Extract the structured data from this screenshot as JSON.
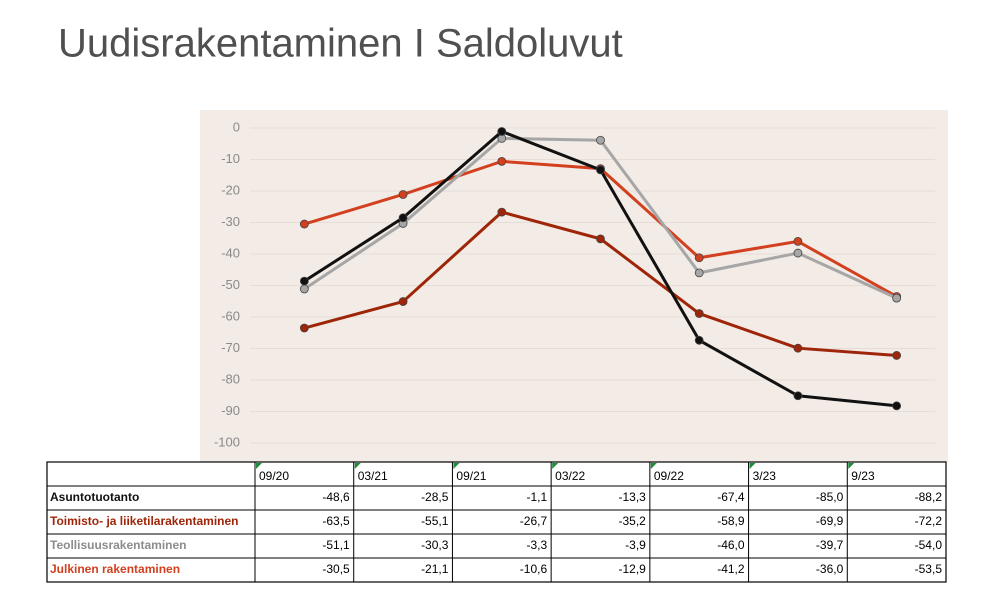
{
  "chart_data": {
    "type": "line",
    "title": "Uudisrakentaminen I Saldoluvut",
    "categories": [
      "09/20",
      "03/21",
      "09/21",
      "03/22",
      "09/22",
      "3/23",
      "9/23"
    ],
    "series": [
      {
        "name": "Asuntotuotanto",
        "color": "#111111",
        "values": [
          -48.6,
          -28.5,
          -1.1,
          -13.3,
          -67.4,
          -85.0,
          -88.2
        ],
        "value_labels": [
          "-48,6",
          "-28,5",
          "-1,1",
          "-13,3",
          "-67,4",
          "-85,0",
          "-88,2"
        ]
      },
      {
        "name": "Toimisto- ja liiketilarakentaminen",
        "color": "#9e2508",
        "values": [
          -63.5,
          -55.1,
          -26.7,
          -35.2,
          -58.9,
          -69.9,
          -72.2
        ],
        "value_labels": [
          "-63,5",
          "-55,1",
          "-26,7",
          "-35,2",
          "-58,9",
          "-69,9",
          "-72,2"
        ]
      },
      {
        "name": "Teollisuusrakentaminen",
        "color": "#a6a6a6",
        "values": [
          -51.1,
          -30.3,
          -3.3,
          -3.9,
          -46.0,
          -39.7,
          -54.0
        ],
        "value_labels": [
          "-51,1",
          "-30,3",
          "-3,3",
          "-3,9",
          "-46,0",
          "-39,7",
          "-54,0"
        ]
      },
      {
        "name": "Julkinen rakentaminen",
        "color": "#d2401f",
        "values": [
          -30.5,
          -21.1,
          -10.6,
          -12.9,
          -41.2,
          -36.0,
          -53.5
        ],
        "value_labels": [
          "-30,5",
          "-21,1",
          "-10,6",
          "-12,9",
          "-41,2",
          "-36,0",
          "-53,5"
        ]
      }
    ],
    "ylim": [
      -100,
      0
    ],
    "yticks": [
      0,
      -10,
      -20,
      -30,
      -40,
      -50,
      -60,
      -70,
      -80,
      -90,
      -100
    ],
    "grid": true
  }
}
